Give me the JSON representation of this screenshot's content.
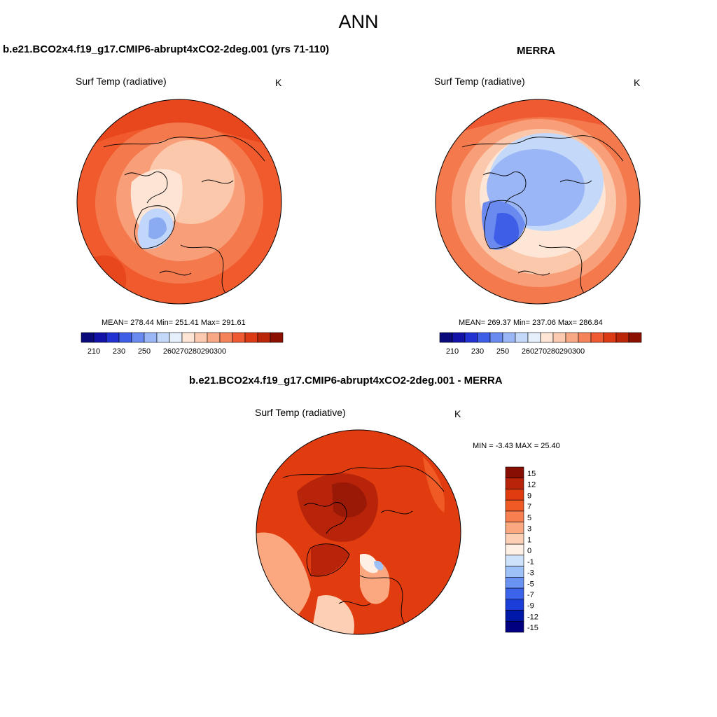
{
  "figure": {
    "title": "ANN"
  },
  "panels": [
    {
      "title": "b.e21.BCO2x4.f19_g17.CMIP6-abrupt4xCO2-2deg.001 (yrs 71-110)",
      "variable": "Surf Temp (radiative)",
      "units": "K",
      "stats": "MEAN= 278.44  Min= 251.41  Max= 291.61"
    },
    {
      "title": "MERRA",
      "variable": "Surf Temp (radiative)",
      "units": "K",
      "stats": "MEAN= 269.37  Min= 237.06  Max= 286.84"
    },
    {
      "title": "b.e21.BCO2x4.f19_g17.CMIP6-abrupt4xCO2-2deg.001 - MERRA",
      "variable": "Surf Temp (radiative)",
      "units": "K",
      "stats": "MIN =  -3.43 MAX =  25.40"
    }
  ],
  "abs_colorbar": {
    "colors": [
      "#0a0a7a",
      "#1212a8",
      "#2232d2",
      "#3e5ee8",
      "#6a8af0",
      "#9ab6f6",
      "#c4d8fa",
      "#e6f0fc",
      "#fde6d6",
      "#fbcab0",
      "#f8a884",
      "#f5835a",
      "#ef5a32",
      "#dc3a14",
      "#bc2608",
      "#8c1000"
    ],
    "tick_labels": [
      "210",
      "230",
      "250",
      "260",
      "270",
      "280",
      "290",
      "300"
    ]
  },
  "diff_colorbar": {
    "colors": [
      "#000080",
      "#0018a8",
      "#1c3ed8",
      "#3c64ea",
      "#6a92f2",
      "#9ec2f8",
      "#cfe2fb",
      "#fff0e6",
      "#fdd0b6",
      "#fba880",
      "#f88050",
      "#f05a24",
      "#e03c10",
      "#b8240a",
      "#880e04"
    ],
    "tick_labels": [
      "-15",
      "-12",
      "-9",
      "-7",
      "-5",
      "-3",
      "-1",
      "0",
      "1",
      "3",
      "5",
      "7",
      "9",
      "12",
      "15"
    ]
  }
}
